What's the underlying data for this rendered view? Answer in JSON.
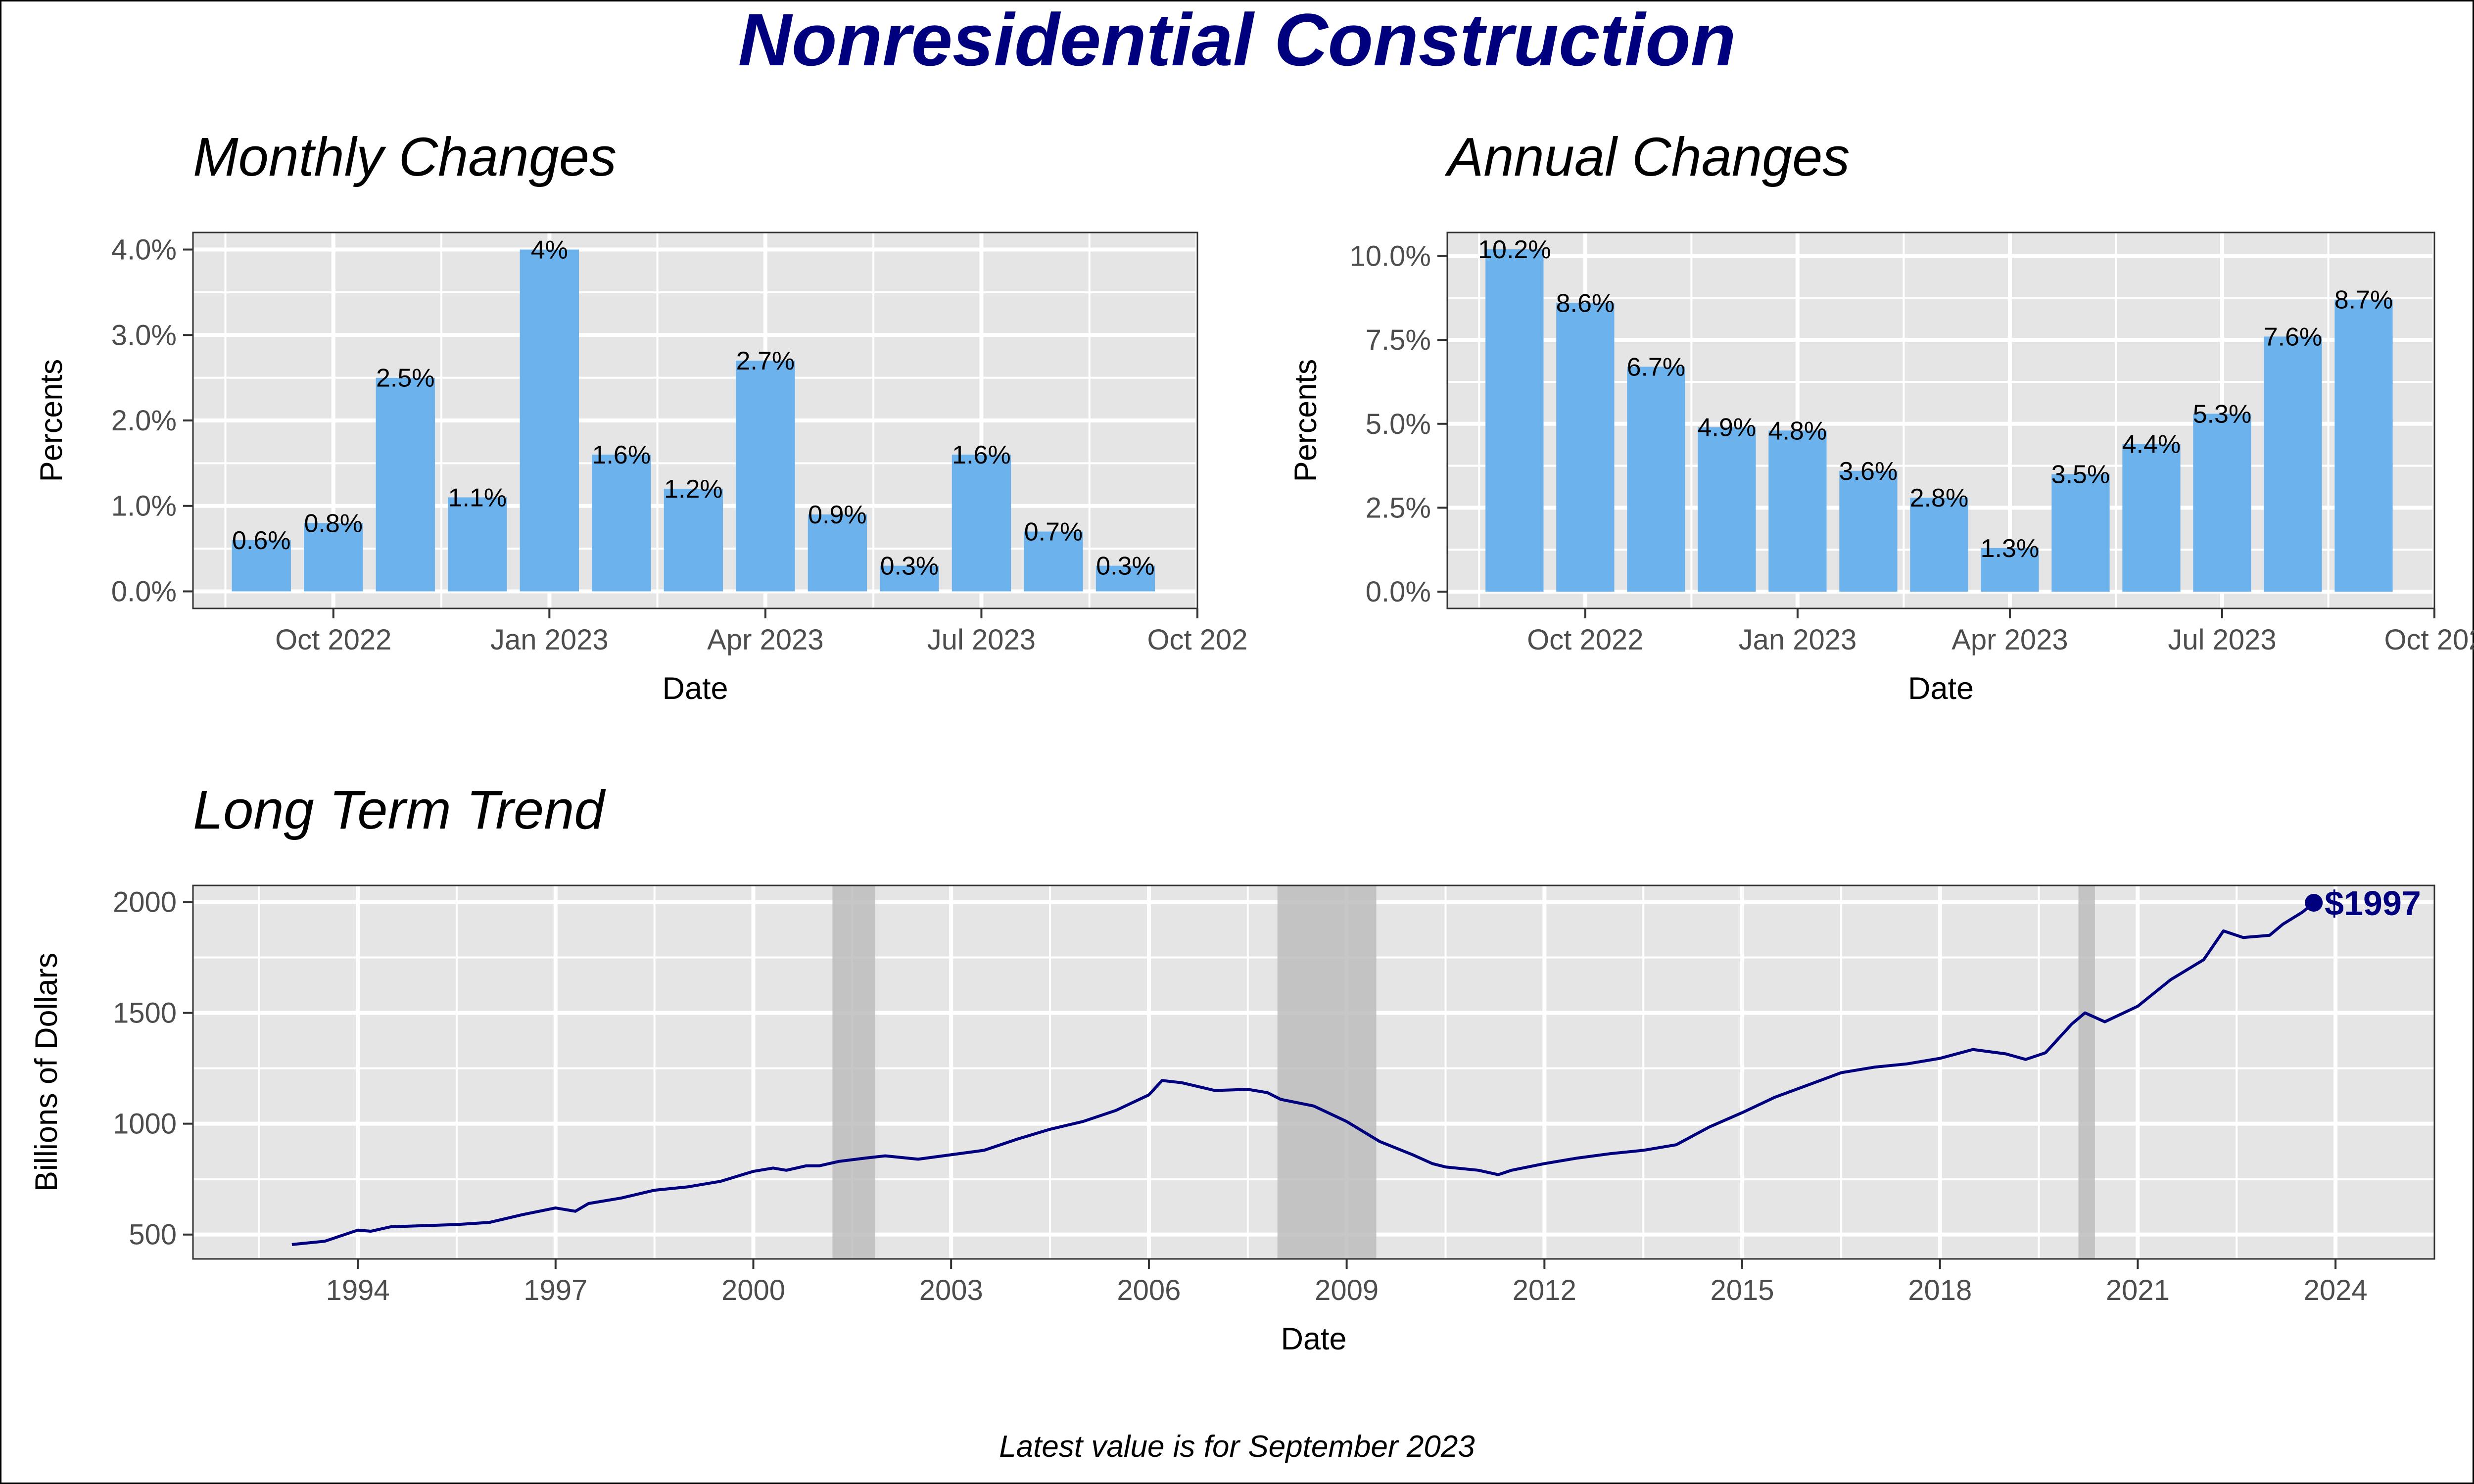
{
  "main_title": "Nonresidential Construction",
  "footnote": "Latest value is for September 2023",
  "colors": {
    "title": "#00007f",
    "bar": "#6cb2ec",
    "line": "#00007f",
    "panel": "#e5e5e5",
    "grid": "#ffffff",
    "recession": "#bdbdbd"
  },
  "chart_data": [
    {
      "type": "bar",
      "title": "Monthly Changes",
      "xlabel": "Date",
      "ylabel": "Percents",
      "grid": true,
      "categories": [
        "Sep 2022",
        "Oct 2022",
        "Nov 2022",
        "Dec 2022",
        "Jan 2023",
        "Feb 2023",
        "Mar 2023",
        "Apr 2023",
        "May 2023",
        "Jun 2023",
        "Jul 2023",
        "Aug 2023",
        "Sep 2023"
      ],
      "values": [
        0.6,
        0.8,
        2.5,
        1.1,
        4.0,
        1.6,
        1.2,
        2.7,
        0.9,
        0.3,
        1.6,
        0.7,
        0.3
      ],
      "data_labels": [
        "0.6%",
        "0.8%",
        "2.5%",
        "1.1%",
        "4%",
        "1.6%",
        "1.2%",
        "2.7%",
        "0.9%",
        "0.3%",
        "1.6%",
        "0.7%",
        "0.3%"
      ],
      "ylim": [
        -0.2,
        4.2
      ],
      "yticks": [
        0,
        1,
        2,
        3,
        4
      ],
      "ytick_labels": [
        "0.0%",
        "1.0%",
        "2.0%",
        "3.0%",
        "4.0%"
      ],
      "xlim": [
        -0.95,
        13.0
      ],
      "xticks": [
        1,
        4,
        7,
        10,
        13
      ],
      "xtick_labels": [
        "Oct 2022",
        "Jan 2023",
        "Apr 2023",
        "Jul 2023",
        "Oct 202"
      ]
    },
    {
      "type": "bar",
      "title": "Annual Changes",
      "xlabel": "Date",
      "ylabel": "Percents",
      "grid": true,
      "categories": [
        "Sep 2022",
        "Oct 2022",
        "Nov 2022",
        "Dec 2022",
        "Jan 2023",
        "Feb 2023",
        "Mar 2023",
        "Apr 2023",
        "May 2023",
        "Jun 2023",
        "Jul 2023",
        "Aug 2023",
        "Sep 2023"
      ],
      "values": [
        10.2,
        8.6,
        6.7,
        4.9,
        4.8,
        3.6,
        2.8,
        1.3,
        3.5,
        4.4,
        5.3,
        7.6,
        8.7
      ],
      "data_labels": [
        "10.2%",
        "8.6%",
        "6.7%",
        "4.9%",
        "4.8%",
        "3.6%",
        "2.8%",
        "1.3%",
        "3.5%",
        "4.4%",
        "5.3%",
        "7.6%",
        "8.7%"
      ],
      "ylim": [
        -0.5,
        10.7
      ],
      "yticks": [
        0,
        2.5,
        5,
        7.5,
        10
      ],
      "ytick_labels": [
        "0.0%",
        "2.5%",
        "5.0%",
        "7.5%",
        "10.0%"
      ],
      "xlim": [
        -0.95,
        13.0
      ],
      "xticks": [
        1,
        4,
        7,
        10,
        13
      ],
      "xtick_labels": [
        "Oct 2022",
        "Jan 2023",
        "Apr 2023",
        "Jul 2023",
        "Oct 202"
      ]
    },
    {
      "type": "line",
      "title": "Long Term Trend",
      "xlabel": "Date",
      "ylabel": "Billions of Dollars",
      "grid": true,
      "xlim": [
        1991.5,
        2025.5
      ],
      "ylim": [
        390,
        2075
      ],
      "xticks": [
        1994,
        1997,
        2000,
        2003,
        2006,
        2009,
        2012,
        2015,
        2018,
        2021,
        2024
      ],
      "xtick_labels": [
        "1994",
        "1997",
        "2000",
        "2003",
        "2006",
        "2009",
        "2012",
        "2015",
        "2018",
        "2021",
        "2024"
      ],
      "yticks": [
        500,
        1000,
        1500,
        2000
      ],
      "ytick_labels": [
        "500",
        "1000",
        "1500",
        "2000"
      ],
      "recessions": [
        [
          2001.2,
          2001.85
        ],
        [
          2007.95,
          2009.45
        ],
        [
          2020.1,
          2020.35
        ]
      ],
      "x": [
        1993.0,
        1993.5,
        1994.0,
        1994.2,
        1994.5,
        1995.0,
        1995.5,
        1996.0,
        1996.5,
        1997.0,
        1997.3,
        1997.5,
        1998.0,
        1998.5,
        1999.0,
        1999.5,
        2000.0,
        2000.3,
        2000.5,
        2000.8,
        2001.0,
        2001.3,
        2001.7,
        2002.0,
        2002.5,
        2003.0,
        2003.5,
        2004.0,
        2004.5,
        2005.0,
        2005.5,
        2006.0,
        2006.2,
        2006.5,
        2007.0,
        2007.5,
        2007.8,
        2008.0,
        2008.5,
        2009.0,
        2009.5,
        2010.0,
        2010.3,
        2010.5,
        2011.0,
        2011.3,
        2011.5,
        2012.0,
        2012.5,
        2013.0,
        2013.5,
        2014.0,
        2014.5,
        2015.0,
        2015.5,
        2016.0,
        2016.5,
        2017.0,
        2017.5,
        2018.0,
        2018.5,
        2019.0,
        2019.3,
        2019.6,
        2020.0,
        2020.2,
        2020.5,
        2021.0,
        2021.5,
        2022.0,
        2022.3,
        2022.6,
        2023.0,
        2023.2,
        2023.5,
        2023.67
      ],
      "y": [
        455,
        470,
        520,
        515,
        535,
        540,
        545,
        555,
        590,
        620,
        605,
        640,
        665,
        700,
        715,
        740,
        785,
        800,
        790,
        810,
        810,
        830,
        845,
        855,
        840,
        860,
        880,
        930,
        975,
        1010,
        1060,
        1130,
        1195,
        1185,
        1150,
        1155,
        1140,
        1110,
        1080,
        1010,
        920,
        860,
        820,
        805,
        790,
        770,
        790,
        820,
        845,
        865,
        880,
        905,
        985,
        1050,
        1120,
        1175,
        1230,
        1255,
        1270,
        1295,
        1335,
        1315,
        1290,
        1320,
        1450,
        1500,
        1460,
        1530,
        1650,
        1740,
        1870,
        1840,
        1850,
        1900,
        1955,
        1997
      ],
      "last_value_label": "$1997"
    }
  ]
}
